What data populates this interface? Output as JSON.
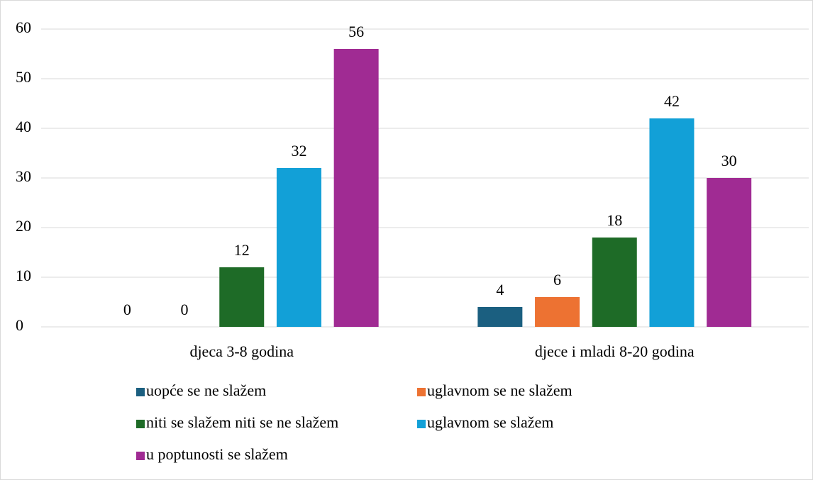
{
  "chart_data": {
    "type": "bar",
    "categories": [
      "djeca 3-8 godina",
      "djece i mladi 8-20 godina"
    ],
    "series": [
      {
        "name": "uopće se ne slažem",
        "color": "#1b5f80",
        "values": [
          0,
          4
        ]
      },
      {
        "name": "uglavnom se ne slažem",
        "color": "#ed7232",
        "values": [
          0,
          6
        ]
      },
      {
        "name": "niti se slažem niti se ne slažem",
        "color": "#1e6b27",
        "values": [
          12,
          18
        ]
      },
      {
        "name": "uglavnom se slažem",
        "color": "#12a0d7",
        "values": [
          32,
          42
        ]
      },
      {
        "name": "u poptunosti se slažem",
        "color": "#a02b93",
        "values": [
          56,
          30
        ]
      }
    ],
    "ylim": [
      0,
      60
    ],
    "yticks": [
      0,
      10,
      20,
      30,
      40,
      50,
      60
    ],
    "grid": true
  }
}
